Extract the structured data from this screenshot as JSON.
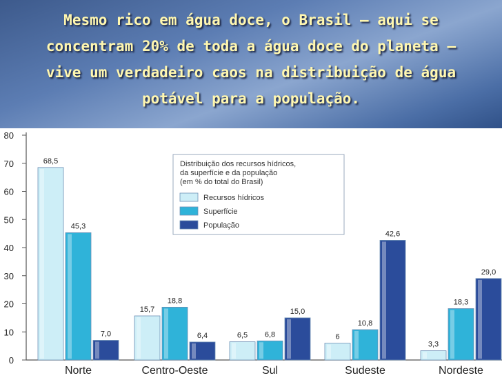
{
  "headline": "Mesmo rico em água doce, o Brasil — aqui se\nconcentram 20% de toda a água doce do planeta —\nvive um verdadeiro caos na distribuição de água\npotável para a população.",
  "colors": {
    "headline_text": "#fff7b0",
    "background": "#4b6ea6"
  },
  "chart_data": {
    "type": "bar",
    "title": "Distribuição dos recursos hídricos, da superfície e da população (em % do total do Brasil)",
    "title_lines": [
      "Distribuição dos recursos hídricos,",
      "da superfície e da população",
      "(em % do total do Brasil)"
    ],
    "categories": [
      "Norte",
      "Centro-Oeste",
      "Sul",
      "Sudeste",
      "Nordeste"
    ],
    "ylim": [
      0,
      80
    ],
    "yticks": [
      "0",
      "10",
      "20",
      "30",
      "40",
      "50",
      "60",
      "70",
      "80"
    ],
    "legend_position": "top-center",
    "series": [
      {
        "name": "Recursos hídricos",
        "color": "#cdeef7",
        "values": [
          68.5,
          15.7,
          6.5,
          6,
          3.3
        ],
        "labels": [
          "68,5",
          "15,7",
          "6,5",
          "6",
          "3,3"
        ]
      },
      {
        "name": "Superfície",
        "color": "#2fb3d9",
        "values": [
          45.3,
          18.8,
          6.8,
          10.8,
          18.3
        ],
        "labels": [
          "45,3",
          "18,8",
          "6,8",
          "10,8",
          "18,3"
        ]
      },
      {
        "name": "População",
        "color": "#2b4c9b",
        "values": [
          7.0,
          6.4,
          15.0,
          42.6,
          29.0
        ],
        "labels": [
          "7,0",
          "6,4",
          "15,0",
          "42,6",
          "29,0"
        ]
      }
    ]
  }
}
